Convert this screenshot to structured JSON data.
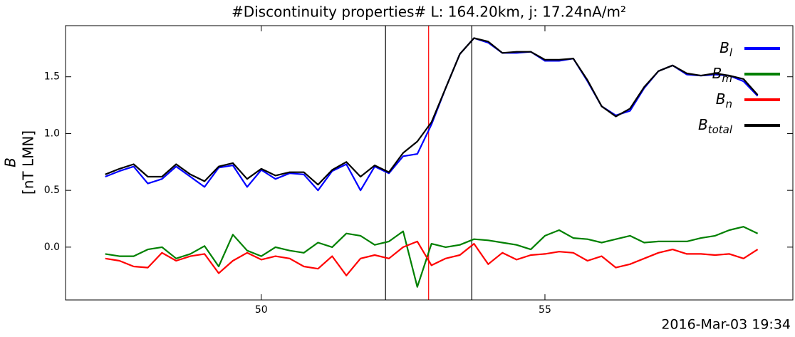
{
  "chart_data": {
    "type": "line",
    "title": "#Discontinuity properties# L: 164.20km, j: 17.24nA/m²",
    "ylabel": [
      "B",
      "[nT LMN]"
    ],
    "footer": "2016-Mar-03 19:34",
    "x": [
      47.25,
      47.5,
      47.75,
      48,
      48.25,
      48.5,
      48.75,
      49,
      49.25,
      49.5,
      49.75,
      50,
      50.25,
      50.5,
      50.75,
      51,
      51.25,
      51.5,
      51.75,
      52,
      52.25,
      52.5,
      52.75,
      53,
      53.25,
      53.5,
      53.75,
      54,
      54.25,
      54.5,
      54.75,
      55,
      55.25,
      55.5,
      55.75,
      56,
      56.25,
      56.5,
      56.75,
      57,
      57.25,
      57.5,
      57.75,
      58,
      58.25,
      58.5,
      58.75
    ],
    "series": [
      {
        "name": "Bl",
        "color": "#0000ff",
        "values": [
          0.62,
          0.67,
          0.71,
          0.56,
          0.6,
          0.71,
          0.62,
          0.53,
          0.7,
          0.72,
          0.53,
          0.68,
          0.6,
          0.65,
          0.64,
          0.5,
          0.67,
          0.73,
          0.5,
          0.71,
          0.65,
          0.8,
          0.82,
          1.08,
          1.4,
          1.7,
          1.84,
          1.8,
          1.71,
          1.71,
          1.72,
          1.64,
          1.64,
          1.66,
          1.46,
          1.24,
          1.16,
          1.2,
          1.4,
          1.55,
          1.6,
          1.52,
          1.51,
          1.52,
          1.51,
          1.46,
          1.33
        ]
      },
      {
        "name": "Bm",
        "color": "#008000",
        "values": [
          -0.06,
          -0.08,
          -0.08,
          -0.02,
          0.0,
          -0.1,
          -0.06,
          0.01,
          -0.17,
          0.11,
          -0.03,
          -0.08,
          0.0,
          -0.03,
          -0.05,
          0.04,
          0.0,
          0.12,
          0.1,
          0.02,
          0.05,
          0.14,
          -0.35,
          0.03,
          0.0,
          0.02,
          0.07,
          0.06,
          0.04,
          0.02,
          -0.02,
          0.1,
          0.15,
          0.08,
          0.07,
          0.04,
          0.07,
          0.1,
          0.04,
          0.05,
          0.05,
          0.05,
          0.08,
          0.1,
          0.15,
          0.18,
          0.12
        ]
      },
      {
        "name": "Bn",
        "color": "#ff0000",
        "values": [
          -0.1,
          -0.12,
          -0.17,
          -0.18,
          -0.05,
          -0.12,
          -0.08,
          -0.06,
          -0.23,
          -0.12,
          -0.05,
          -0.11,
          -0.08,
          -0.1,
          -0.17,
          -0.19,
          -0.08,
          -0.25,
          -0.1,
          -0.07,
          -0.1,
          0.0,
          0.05,
          -0.16,
          -0.1,
          -0.07,
          0.03,
          -0.15,
          -0.05,
          -0.11,
          -0.07,
          -0.06,
          -0.04,
          -0.05,
          -0.12,
          -0.08,
          -0.18,
          -0.15,
          -0.1,
          -0.05,
          -0.02,
          -0.06,
          -0.06,
          -0.07,
          -0.06,
          -0.1,
          -0.02
        ]
      },
      {
        "name": "Btotal",
        "color": "#000000",
        "values": [
          0.64,
          0.69,
          0.73,
          0.62,
          0.62,
          0.73,
          0.64,
          0.58,
          0.71,
          0.74,
          0.6,
          0.69,
          0.63,
          0.66,
          0.66,
          0.55,
          0.68,
          0.75,
          0.62,
          0.72,
          0.66,
          0.83,
          0.93,
          1.1,
          1.4,
          1.7,
          1.84,
          1.81,
          1.71,
          1.72,
          1.72,
          1.65,
          1.65,
          1.66,
          1.47,
          1.24,
          1.15,
          1.22,
          1.41,
          1.55,
          1.6,
          1.53,
          1.51,
          1.53,
          1.51,
          1.48,
          1.34
        ]
      }
    ],
    "vlines": [
      {
        "value": 52.19,
        "color": "#000000"
      },
      {
        "value": 52.95,
        "color": "#ff0000"
      },
      {
        "value": 53.71,
        "color": "#000000"
      }
    ],
    "xlim": [
      46.55,
      59.37
    ],
    "xticks": [
      50,
      55
    ],
    "ylim": [
      -0.465,
      1.95
    ],
    "yticks": [
      {
        "value": 0,
        "label": "0.0"
      },
      {
        "value": 0.5,
        "label": "0.5"
      },
      {
        "value": 1,
        "label": "1.0"
      },
      {
        "value": 1.5,
        "label": "1.5"
      }
    ],
    "legend": "upper right"
  }
}
